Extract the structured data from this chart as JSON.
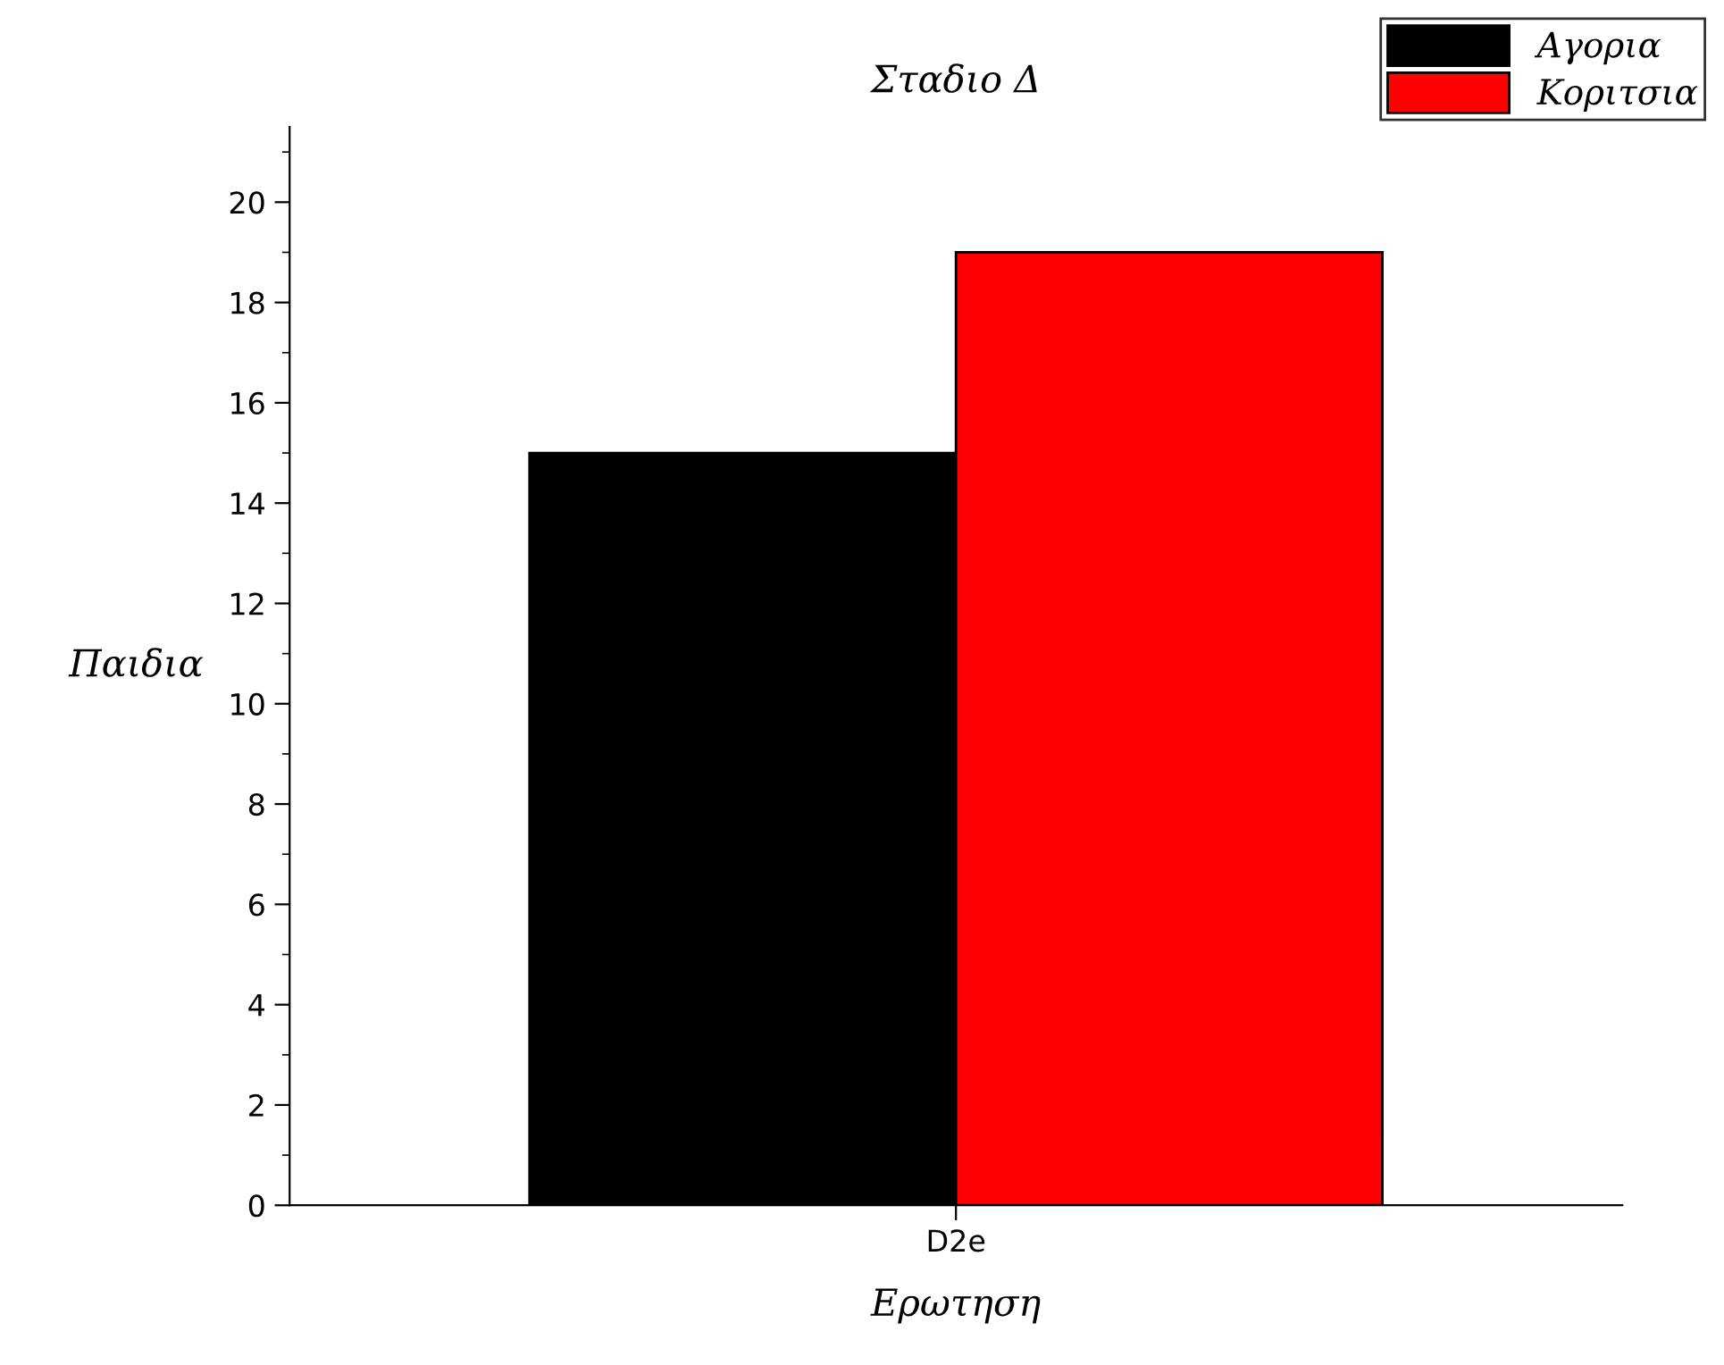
{
  "chart_data": {
    "type": "bar",
    "title": "Σταδιο Δ",
    "xlabel": "Ερωτηση",
    "ylabel": "Παιδια",
    "categories": [
      "D2e"
    ],
    "series": [
      {
        "name": "Αγορια",
        "color": "#000000",
        "values": [
          15
        ]
      },
      {
        "name": "Κοριτσια",
        "color": "#ff0000",
        "values": [
          19
        ]
      }
    ],
    "ylim": [
      0,
      21.5
    ],
    "yticks": [
      0,
      2,
      4,
      6,
      8,
      10,
      12,
      14,
      16,
      18,
      20
    ],
    "grid": false,
    "legend": "top right"
  }
}
